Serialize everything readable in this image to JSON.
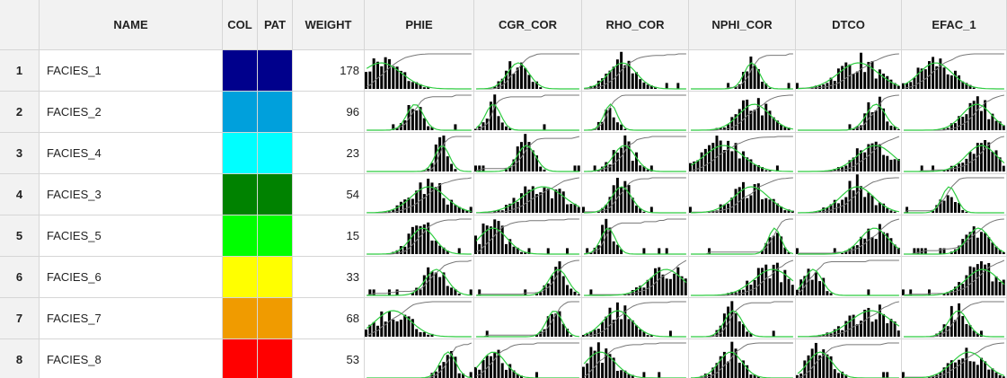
{
  "table": {
    "columns": [
      "NAME",
      "COL",
      "PAT",
      "WEIGHT",
      "PHIE",
      "CGR_COR",
      "RHO_COR",
      "NPHI_COR",
      "DTCO",
      "EFAC_1"
    ],
    "rows": [
      {
        "index": 1,
        "name": "FACIES_1",
        "color": "#00008c",
        "weight": 178
      },
      {
        "index": 2,
        "name": "FACIES_2",
        "color": "#00a0dc",
        "weight": 96
      },
      {
        "index": 3,
        "name": "FACIES_4",
        "color": "#00ffff",
        "weight": 23
      },
      {
        "index": 4,
        "name": "FACIES_3",
        "color": "#008200",
        "weight": 54
      },
      {
        "index": 5,
        "name": "FACIES_5",
        "color": "#00ff00",
        "weight": 15
      },
      {
        "index": 6,
        "name": "FACIES_6",
        "color": "#ffff00",
        "weight": 33
      },
      {
        "index": 7,
        "name": "FACIES_7",
        "color": "#f09b00",
        "weight": 68
      },
      {
        "index": 8,
        "name": "FACIES_8",
        "color": "#ff0000",
        "weight": 53
      }
    ]
  }
}
